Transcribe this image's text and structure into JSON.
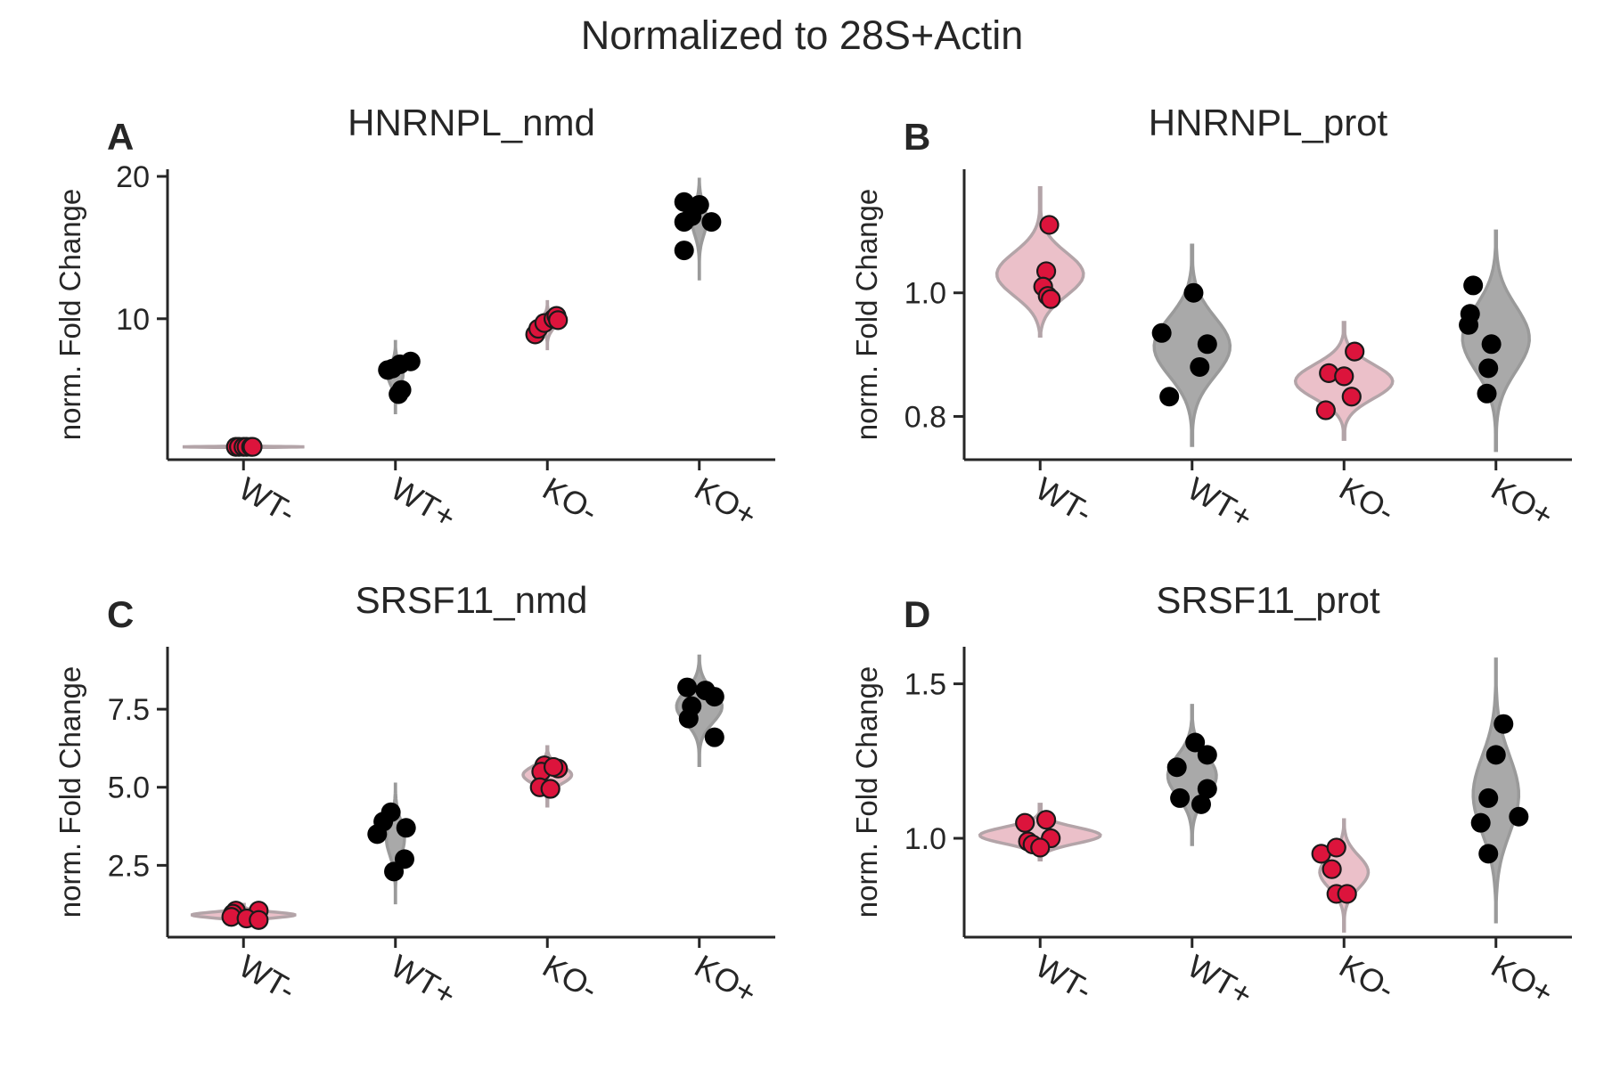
{
  "figure": {
    "title": "Normalized to 28S+Actin",
    "colors": {
      "minus_violin_fill": "#ebc0c9",
      "minus_violin_edge": "#b3a4a8",
      "plus_violin_fill": "#a9a9a9",
      "plus_violin_edge": "#9a9a9a",
      "minus_point": "#dc143c",
      "plus_point": "#000000",
      "axis": "#262626"
    }
  },
  "chart_data": [
    {
      "type": "violin",
      "panel_letter": "A",
      "title": "HNRNPL_nmd",
      "ylabel": "norm. Fold Change",
      "categories": [
        "WT-",
        "WT+",
        "KO-",
        "KO+"
      ],
      "ylim": [
        0.1,
        20.5
      ],
      "yticks": [
        10,
        20
      ],
      "ytick_labels": [
        "10",
        "20"
      ],
      "series": [
        {
          "values": [
            1.0,
            1.0,
            1.0,
            1.0,
            1.0,
            1.0
          ],
          "offsets": [
            -0.05,
            -0.03,
            0.0,
            0.02,
            0.05,
            0.06
          ],
          "violin_range": [
            0.9,
            1.1
          ],
          "violin_width": 0.8
        },
        {
          "values": [
            6.4,
            6.8,
            7.0,
            4.7,
            5.0,
            6.5
          ],
          "offsets": [
            -0.05,
            0.03,
            0.1,
            0.02,
            0.04,
            -0.02
          ],
          "violin_range": [
            3.4,
            8.4
          ],
          "violin_width": 0.1
        },
        {
          "values": [
            8.9,
            9.3,
            9.7,
            10.0,
            10.2,
            9.9
          ],
          "offsets": [
            -0.08,
            -0.06,
            -0.02,
            0.04,
            0.06,
            0.07
          ],
          "violin_range": [
            7.9,
            11.2
          ],
          "violin_width": 0.1
        },
        {
          "values": [
            18.2,
            18.0,
            16.8,
            14.8,
            16.8,
            17.2
          ],
          "offsets": [
            -0.1,
            0.0,
            -0.1,
            -0.1,
            0.08,
            -0.05
          ],
          "violin_range": [
            12.8,
            19.8
          ],
          "violin_width": 0.1
        }
      ]
    },
    {
      "type": "violin",
      "panel_letter": "B",
      "title": "HNRNPL_prot",
      "ylabel": "norm. Fold Change",
      "categories": [
        "WT-",
        "WT+",
        "KO-",
        "KO+"
      ],
      "ylim": [
        0.73,
        1.2
      ],
      "yticks": [
        0.8,
        1.0
      ],
      "ytick_labels": [
        "0.8",
        "1.0"
      ],
      "series": [
        {
          "values": [
            1.11,
            1.035,
            1.01,
            0.995,
            0.99
          ],
          "offsets": [
            0.06,
            0.04,
            0.02,
            0.05,
            0.07
          ],
          "violin_range": [
            0.93,
            1.17
          ],
          "violin_width": 0.58
        },
        {
          "values": [
            1.0,
            0.935,
            0.917,
            0.88,
            0.832
          ],
          "offsets": [
            0.01,
            -0.2,
            0.1,
            0.05,
            -0.15
          ],
          "violin_range": [
            0.753,
            1.077
          ],
          "violin_width": 0.5
        },
        {
          "values": [
            0.905,
            0.87,
            0.865,
            0.832,
            0.81
          ],
          "offsets": [
            0.07,
            -0.1,
            0.0,
            0.05,
            -0.12
          ],
          "violin_range": [
            0.763,
            0.952
          ],
          "violin_width": 0.64
        },
        {
          "values": [
            1.012,
            0.966,
            0.948,
            0.917,
            0.878,
            0.837
          ],
          "offsets": [
            -0.15,
            -0.17,
            -0.18,
            -0.03,
            -0.05,
            -0.06
          ],
          "violin_range": [
            0.745,
            1.1
          ],
          "violin_width": 0.44
        }
      ]
    },
    {
      "type": "violin",
      "panel_letter": "C",
      "title": "SRSF11_nmd",
      "ylabel": "norm. Fold Change",
      "categories": [
        "WT-",
        "WT+",
        "KO-",
        "KO+"
      ],
      "ylim": [
        0.2,
        9.5
      ],
      "yticks": [
        2.5,
        5.0,
        7.5
      ],
      "ytick_labels": [
        "2.5",
        "5.0",
        "7.5"
      ],
      "series": [
        {
          "values": [
            1.05,
            0.95,
            0.85,
            1.05,
            0.8,
            0.75
          ],
          "offsets": [
            -0.05,
            -0.07,
            -0.08,
            0.1,
            0.02,
            0.1
          ],
          "violin_range": [
            0.62,
            1.25
          ],
          "violin_width": 0.68
        },
        {
          "values": [
            4.2,
            3.9,
            3.7,
            3.5,
            2.7,
            2.3
          ],
          "offsets": [
            -0.03,
            -0.08,
            0.07,
            -0.12,
            0.06,
            -0.01
          ],
          "violin_range": [
            1.3,
            5.1
          ],
          "violin_width": 0.12
        },
        {
          "values": [
            5.7,
            5.6,
            5.5,
            5.0,
            4.95,
            5.65
          ],
          "offsets": [
            -0.02,
            0.07,
            -0.04,
            -0.05,
            0.02,
            0.04
          ],
          "violin_range": [
            4.4,
            6.3
          ],
          "violin_width": 0.32
        },
        {
          "values": [
            8.2,
            8.1,
            7.9,
            7.6,
            7.2,
            6.6
          ],
          "offsets": [
            -0.08,
            0.04,
            0.1,
            -0.05,
            -0.07,
            0.1
          ],
          "violin_range": [
            5.7,
            9.2
          ],
          "violin_width": 0.3
        }
      ]
    },
    {
      "type": "violin",
      "panel_letter": "D",
      "title": "SRSF11_prot",
      "ylabel": "norm. Fold Change",
      "categories": [
        "WT-",
        "WT+",
        "KO-",
        "KO+"
      ],
      "ylim": [
        0.68,
        1.62
      ],
      "yticks": [
        1.0,
        1.5
      ],
      "ytick_labels": [
        "1.0",
        "1.5"
      ],
      "series": [
        {
          "values": [
            1.05,
            1.06,
            0.99,
            0.98,
            1.0,
            0.97
          ],
          "offsets": [
            -0.1,
            0.04,
            -0.08,
            -0.05,
            0.07,
            0.0
          ],
          "violin_range": [
            0.93,
            1.11
          ],
          "violin_width": 0.8
        },
        {
          "values": [
            1.31,
            1.27,
            1.23,
            1.16,
            1.13,
            1.11
          ],
          "offsets": [
            0.02,
            0.1,
            -0.1,
            0.1,
            -0.08,
            0.06
          ],
          "violin_range": [
            0.98,
            1.43
          ],
          "violin_width": 0.32
        },
        {
          "values": [
            0.95,
            0.97,
            0.9,
            0.82,
            0.82
          ],
          "offsets": [
            -0.15,
            -0.05,
            -0.08,
            -0.05,
            0.02
          ],
          "violin_range": [
            0.7,
            1.06
          ],
          "violin_width": 0.32
        },
        {
          "values": [
            1.37,
            1.27,
            1.13,
            1.07,
            1.05,
            0.95
          ],
          "offsets": [
            0.05,
            0.0,
            -0.05,
            0.15,
            -0.1,
            -0.05
          ],
          "violin_range": [
            0.73,
            1.58
          ],
          "violin_width": 0.3
        }
      ]
    }
  ]
}
